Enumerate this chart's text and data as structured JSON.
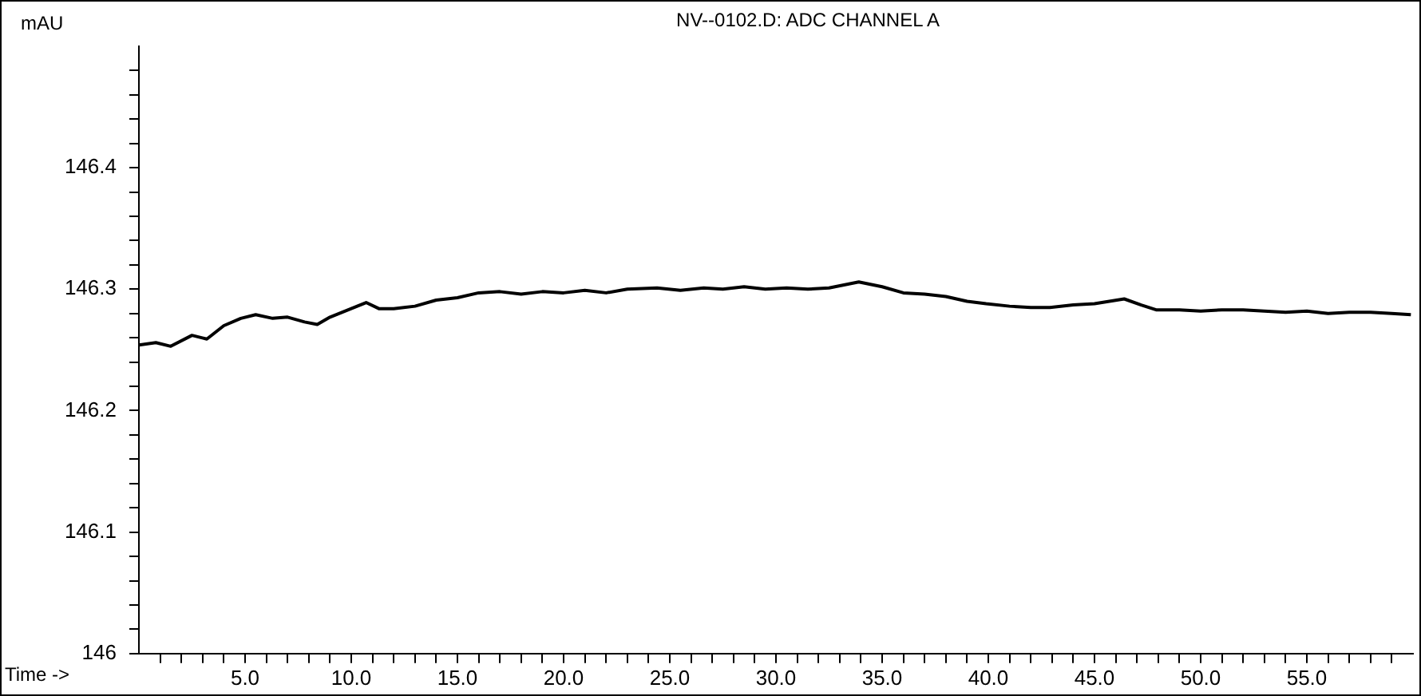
{
  "chart_data": {
    "type": "line",
    "title": "NV--0102.D: ADC CHANNEL A",
    "xlabel": "Time ->",
    "ylabel": "mAU",
    "x": [
      0,
      0.8,
      1.5,
      2.5,
      3.2,
      4,
      4.8,
      5.5,
      6.3,
      7,
      7.8,
      8.4,
      9,
      10,
      10.7,
      11.3,
      12,
      13,
      14,
      15,
      16,
      17,
      18,
      19,
      20,
      21,
      22,
      23,
      24.4,
      25.5,
      26.6,
      27.5,
      28.5,
      29.5,
      30.5,
      31.5,
      32.5,
      33.9,
      35,
      36,
      37,
      38,
      39,
      39.9,
      41,
      42,
      42.9,
      44,
      45,
      46.4,
      47.2,
      47.9,
      49,
      50,
      51,
      52,
      53,
      54,
      55,
      56,
      57,
      58,
      59,
      59.9
    ],
    "series": [
      {
        "color": "#000000",
        "values": [
          146.254,
          146.256,
          146.253,
          146.262,
          146.259,
          146.27,
          146.276,
          146.279,
          146.276,
          146.277,
          146.273,
          146.271,
          146.277,
          146.284,
          146.289,
          146.284,
          146.284,
          146.286,
          146.291,
          146.293,
          146.297,
          146.298,
          146.296,
          146.298,
          146.297,
          146.299,
          146.297,
          146.3,
          146.301,
          146.299,
          146.301,
          146.3,
          146.302,
          146.3,
          146.301,
          146.3,
          146.301,
          146.306,
          146.302,
          146.297,
          146.296,
          146.294,
          146.29,
          146.288,
          146.286,
          146.285,
          146.285,
          146.287,
          146.288,
          146.292,
          146.287,
          146.283,
          146.283,
          146.282,
          146.283,
          146.283,
          146.282,
          146.281,
          146.282,
          146.28,
          146.281,
          146.281,
          146.28,
          146.279
        ]
      }
    ],
    "xlim": [
      0,
      60
    ],
    "xticks": [
      {
        "value": 1,
        "label": null
      },
      {
        "value": 2,
        "label": null
      },
      {
        "value": 3,
        "label": null
      },
      {
        "value": 4,
        "label": null
      },
      {
        "value": 5,
        "label": "5.0"
      },
      {
        "value": 6,
        "label": null
      },
      {
        "value": 7,
        "label": null
      },
      {
        "value": 8,
        "label": null
      },
      {
        "value": 9,
        "label": null
      },
      {
        "value": 10,
        "label": "10.0"
      },
      {
        "value": 11,
        "label": null
      },
      {
        "value": 12,
        "label": null
      },
      {
        "value": 13,
        "label": null
      },
      {
        "value": 14,
        "label": null
      },
      {
        "value": 15,
        "label": "15.0"
      },
      {
        "value": 16,
        "label": null
      },
      {
        "value": 17,
        "label": null
      },
      {
        "value": 18,
        "label": null
      },
      {
        "value": 19,
        "label": null
      },
      {
        "value": 20,
        "label": "20.0"
      },
      {
        "value": 21,
        "label": null
      },
      {
        "value": 22,
        "label": null
      },
      {
        "value": 23,
        "label": null
      },
      {
        "value": 24,
        "label": null
      },
      {
        "value": 25,
        "label": "25.0"
      },
      {
        "value": 26,
        "label": null
      },
      {
        "value": 27,
        "label": null
      },
      {
        "value": 28,
        "label": null
      },
      {
        "value": 29,
        "label": null
      },
      {
        "value": 30,
        "label": "30.0"
      },
      {
        "value": 31,
        "label": null
      },
      {
        "value": 32,
        "label": null
      },
      {
        "value": 33,
        "label": null
      },
      {
        "value": 34,
        "label": null
      },
      {
        "value": 35,
        "label": "35.0"
      },
      {
        "value": 36,
        "label": null
      },
      {
        "value": 37,
        "label": null
      },
      {
        "value": 38,
        "label": null
      },
      {
        "value": 39,
        "label": null
      },
      {
        "value": 40,
        "label": "40.0"
      },
      {
        "value": 41,
        "label": null
      },
      {
        "value": 42,
        "label": null
      },
      {
        "value": 43,
        "label": null
      },
      {
        "value": 44,
        "label": null
      },
      {
        "value": 45,
        "label": "45.0"
      },
      {
        "value": 46,
        "label": null
      },
      {
        "value": 47,
        "label": null
      },
      {
        "value": 48,
        "label": null
      },
      {
        "value": 49,
        "label": null
      },
      {
        "value": 50,
        "label": "50.0"
      },
      {
        "value": 51,
        "label": null
      },
      {
        "value": 52,
        "label": null
      },
      {
        "value": 53,
        "label": null
      },
      {
        "value": 54,
        "label": null
      },
      {
        "value": 55,
        "label": "55.0"
      },
      {
        "value": 56,
        "label": null
      },
      {
        "value": 57,
        "label": null
      },
      {
        "value": 58,
        "label": null
      },
      {
        "value": 59,
        "label": null
      }
    ],
    "ylim": [
      146,
      146.5
    ],
    "yticks": [
      146,
      {
        "value": 146.02,
        "label": null
      },
      {
        "value": 146.04,
        "label": null
      },
      {
        "value": 146.06,
        "label": null
      },
      {
        "value": 146.08,
        "label": null
      },
      146.1,
      {
        "value": 146.12,
        "label": null
      },
      {
        "value": 146.14,
        "label": null
      },
      {
        "value": 146.16,
        "label": null
      },
      {
        "value": 146.18,
        "label": null
      },
      146.2,
      {
        "value": 146.22,
        "label": null
      },
      {
        "value": 146.24,
        "label": null
      },
      {
        "value": 146.26,
        "label": null
      },
      {
        "value": 146.28,
        "label": null
      },
      146.3,
      {
        "value": 146.32,
        "label": null
      },
      {
        "value": 146.34,
        "label": null
      },
      {
        "value": 146.36,
        "label": null
      },
      {
        "value": 146.38,
        "label": null
      },
      146.4,
      {
        "value": 146.42,
        "label": null
      },
      {
        "value": 146.44,
        "label": null
      },
      {
        "value": 146.46,
        "label": null
      },
      {
        "value": 146.48,
        "label": null
      }
    ],
    "grid": false,
    "legend": false,
    "marker": "none",
    "line_style": "solid"
  }
}
